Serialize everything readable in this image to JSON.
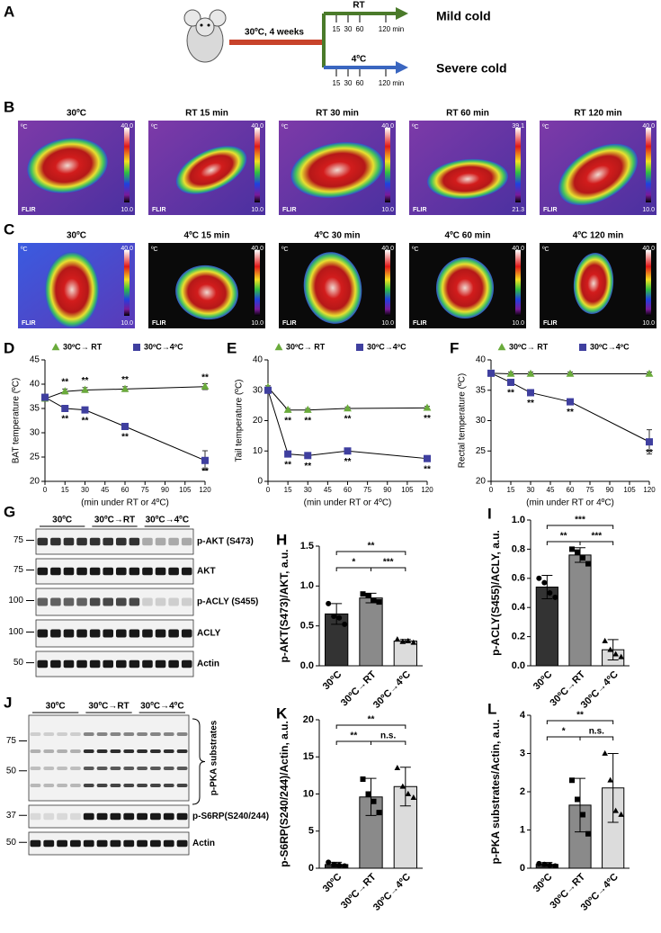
{
  "schematic": {
    "label": "A",
    "housing": "30ºC, 4 weeks",
    "branch_rt": "RT",
    "branch_cold": "4ºC",
    "timepoints": [
      "15",
      "30",
      "60",
      "120 min"
    ],
    "outcome_rt": "Mild cold",
    "outcome_cold": "Severe cold"
  },
  "thermal_b": {
    "label": "B",
    "unit": "ºC",
    "brand": "FLIR",
    "panels": [
      {
        "title": "30ºC",
        "max": "40.0",
        "min": "10.0"
      },
      {
        "title": "RT 15 min",
        "max": "40.0",
        "min": "10.0"
      },
      {
        "title": "RT 30 min",
        "max": "40.0",
        "min": "10.0"
      },
      {
        "title": "RT 60 min",
        "max": "39.1",
        "min": "21.3"
      },
      {
        "title": "RT 120 min",
        "max": "40.0",
        "min": "10.0"
      }
    ]
  },
  "thermal_c": {
    "label": "C",
    "unit": "ºC",
    "brand": "FLIR",
    "panels": [
      {
        "title": "30ºC",
        "max": "40.0",
        "min": "10.0"
      },
      {
        "title": "4ºC 15 min",
        "max": "40.0",
        "min": "10.0"
      },
      {
        "title": "4ºC 30 min",
        "max": "40.0",
        "min": "10.0"
      },
      {
        "title": "4ºC 60 min",
        "max": "40.0",
        "min": "10.0"
      },
      {
        "title": "4ºC 120 min",
        "max": "40.0",
        "min": "10.0"
      }
    ]
  },
  "blots_g": {
    "label": "G",
    "groups": [
      "30ºC",
      "30ºC→RT",
      "30ºC→4ºC"
    ],
    "rows": [
      {
        "name": "p-AKT (S473)",
        "mw": [
          "75"
        ]
      },
      {
        "name": "AKT",
        "mw": [
          "75"
        ]
      },
      {
        "name": "p-ACLY (S455)",
        "mw": [
          "100"
        ]
      },
      {
        "name": "ACLY",
        "mw": [
          "100"
        ]
      },
      {
        "name": "Actin",
        "mw": [
          "50"
        ]
      }
    ]
  },
  "blots_j": {
    "label": "J",
    "groups": [
      "30ºC",
      "30ºC→RT",
      "30ºC→4ºC"
    ],
    "rows": [
      {
        "name": "p-PKA substrates",
        "mw": [
          "75",
          "50"
        ]
      },
      {
        "name": "p-S6RP(S240/244)",
        "mw": [
          "37"
        ]
      },
      {
        "name": "Actin",
        "mw": [
          "50"
        ]
      }
    ]
  },
  "chart_data": [
    {
      "type": "line",
      "label": "D",
      "y_label": "BAT temperature (ºC)",
      "x_label": "(min under RT or 4ºC)",
      "xlim": [
        0,
        120
      ],
      "xticks": [
        0,
        15,
        30,
        45,
        60,
        75,
        90,
        105,
        120
      ],
      "ylim": [
        20,
        45
      ],
      "yticks": [
        20,
        25,
        30,
        35,
        40,
        45
      ],
      "x": [
        0,
        15,
        30,
        60,
        120
      ],
      "series": [
        {
          "name": "30ºC→ RT",
          "color": "#6aab3b",
          "marker": "triangle",
          "values": [
            37,
            38.5,
            38.8,
            39,
            39.5
          ],
          "errors": [
            0.5,
            0.5,
            0.5,
            0.5,
            0.6
          ],
          "significance": [
            null,
            "**",
            "**",
            "**",
            "**"
          ]
        },
        {
          "name": "30ºC→4ºC",
          "color": "#3f3f9f",
          "marker": "square",
          "values": [
            37.3,
            35,
            34.7,
            31.3,
            24.3
          ],
          "errors": [
            0.6,
            0.5,
            0.5,
            0.6,
            2
          ],
          "significance": [
            null,
            "**",
            "**",
            "**",
            "**"
          ]
        }
      ]
    },
    {
      "type": "line",
      "label": "E",
      "y_label": "Tail temperature (ºC)",
      "x_label": "(min under RT or 4ºC)",
      "xlim": [
        0,
        120
      ],
      "xticks": [
        0,
        15,
        30,
        45,
        60,
        75,
        90,
        105,
        120
      ],
      "ylim": [
        0,
        40
      ],
      "yticks": [
        0,
        10,
        20,
        30,
        40
      ],
      "x": [
        0,
        15,
        30,
        60,
        120
      ],
      "series": [
        {
          "name": "30ºC→ RT",
          "color": "#6aab3b",
          "marker": "triangle",
          "values": [
            31,
            23.5,
            23.5,
            24,
            24.2
          ],
          "errors": [
            0.5,
            0.5,
            0.5,
            0.5,
            0.5
          ],
          "significance": [
            null,
            "**",
            "**",
            "**",
            "**"
          ]
        },
        {
          "name": "30ºC→4ºC",
          "color": "#3f3f9f",
          "marker": "square",
          "values": [
            30,
            9,
            8.5,
            10,
            7.5
          ],
          "errors": [
            0.5,
            0.5,
            0.5,
            0.5,
            0.5
          ],
          "significance": [
            null,
            "**",
            "**",
            "**",
            "**"
          ]
        }
      ]
    },
    {
      "type": "line",
      "label": "F",
      "y_label": "Rectal temperature (ºC)",
      "x_label": "(min under RT or 4ºC)",
      "xlim": [
        0,
        120
      ],
      "xticks": [
        0,
        15,
        30,
        45,
        60,
        75,
        90,
        105,
        120
      ],
      "ylim": [
        20,
        40
      ],
      "yticks": [
        20,
        25,
        30,
        35,
        40
      ],
      "x": [
        0,
        15,
        30,
        60,
        120
      ],
      "series": [
        {
          "name": "30ºC→ RT",
          "color": "#6aab3b",
          "marker": "triangle",
          "values": [
            37.8,
            37.7,
            37.7,
            37.7,
            37.7
          ],
          "errors": [
            0.3,
            0.3,
            0.3,
            0.3,
            0.3
          ],
          "significance": [
            null,
            null,
            null,
            null,
            null
          ]
        },
        {
          "name": "30ºC→4ºC",
          "color": "#3f3f9f",
          "marker": "square",
          "values": [
            37.8,
            36.3,
            34.6,
            33.1,
            26.5
          ],
          "errors": [
            0.4,
            0.4,
            0.4,
            0.4,
            2
          ],
          "significance": [
            null,
            "**",
            "**",
            "**",
            "**"
          ]
        }
      ]
    },
    {
      "type": "bar",
      "label": "H",
      "y_label": "p-AKT(S473)/AKT, a.u.",
      "categories": [
        "30ºC",
        "30ºC→RT",
        "30ºC→4ºC"
      ],
      "colors": [
        "#333333",
        "#8a8a8a",
        "#dcdcdc"
      ],
      "markers": [
        "circle",
        "square",
        "triangle"
      ],
      "values": [
        0.65,
        0.85,
        0.31
      ],
      "errors": [
        0.13,
        0.06,
        0.02
      ],
      "points": [
        [
          0.78,
          0.62,
          0.6,
          0.52
        ],
        [
          0.9,
          0.88,
          0.82,
          0.8
        ],
        [
          0.33,
          0.3,
          0.31,
          0.29
        ]
      ],
      "ylim": [
        0,
        1.5
      ],
      "yticks": [
        {
          "value": 0,
          "label": "0.0"
        },
        0.5,
        {
          "value": 1,
          "label": "1.0"
        },
        1.5
      ],
      "brackets": [
        {
          "label": "*",
          "groups": [
            0,
            1
          ]
        },
        {
          "label": "***",
          "groups": [
            1,
            2
          ]
        },
        {
          "label": "**",
          "groups": [
            0,
            2
          ]
        }
      ]
    },
    {
      "type": "bar",
      "label": "I",
      "y_label": "p-ACLY(S455)/ACLY, a.u.",
      "categories": [
        "30ºC",
        "30ºC→RT",
        "30ºC→4ºC"
      ],
      "colors": [
        "#333333",
        "#8a8a8a",
        "#dcdcdc"
      ],
      "markers": [
        "circle",
        "square",
        "triangle"
      ],
      "values": [
        0.54,
        0.76,
        0.11
      ],
      "errors": [
        0.08,
        0.05,
        0.07
      ],
      "points": [
        [
          0.6,
          0.57,
          0.5,
          0.47
        ],
        [
          0.8,
          0.78,
          0.74,
          0.7
        ],
        [
          0.17,
          0.11,
          0.08,
          0.06
        ]
      ],
      "ylim": [
        0,
        1
      ],
      "yticks": [
        {
          "value": 0,
          "label": "0.0"
        },
        0.2,
        0.4,
        0.6,
        0.8,
        {
          "value": 1,
          "label": "1.0"
        }
      ],
      "brackets": [
        {
          "label": "**",
          "groups": [
            0,
            1
          ]
        },
        {
          "label": "***",
          "groups": [
            1,
            2
          ]
        },
        {
          "label": "***",
          "groups": [
            0,
            2
          ]
        }
      ]
    },
    {
      "type": "bar",
      "label": "K",
      "y_label": "p-S6RP(S240/244)/Actin, a.u.",
      "categories": [
        "30ºC",
        "30ºC→RT",
        "30ºC→4ºC"
      ],
      "colors": [
        "#333333",
        "#8a8a8a",
        "#dcdcdc"
      ],
      "markers": [
        "circle",
        "square",
        "triangle"
      ],
      "values": [
        0.5,
        9.6,
        11
      ],
      "errors": [
        0.3,
        2.5,
        2.6
      ],
      "points": [
        [
          0.8,
          0.5,
          0.4,
          0.3
        ],
        [
          12,
          10,
          9,
          7.5
        ],
        [
          13.5,
          11,
          10,
          9.5
        ]
      ],
      "ylim": [
        0,
        20
      ],
      "yticks": [
        0,
        5,
        10,
        15,
        20
      ],
      "brackets": [
        {
          "label": "**",
          "groups": [
            0,
            1
          ]
        },
        {
          "label": "n.s.",
          "groups": [
            1,
            2
          ]
        },
        {
          "label": "**",
          "groups": [
            0,
            2
          ]
        }
      ]
    },
    {
      "type": "bar",
      "label": "L",
      "y_label": "p-PKA substrates/Actin, a.u.",
      "categories": [
        "30ºC",
        "30ºC→RT",
        "30ºC→4ºC"
      ],
      "colors": [
        "#333333",
        "#8a8a8a",
        "#dcdcdc"
      ],
      "markers": [
        "circle",
        "square",
        "triangle"
      ],
      "values": [
        0.1,
        1.65,
        2.1
      ],
      "errors": [
        0.05,
        0.7,
        0.9
      ],
      "points": [
        [
          0.12,
          0.1,
          0.08,
          0.06
        ],
        [
          2.3,
          1.8,
          1.4,
          0.9
        ],
        [
          3.0,
          2.3,
          1.5,
          1.4
        ]
      ],
      "ylim": [
        0,
        4
      ],
      "yticks": [
        0,
        1,
        2,
        3,
        4
      ],
      "brackets": [
        {
          "label": "*",
          "groups": [
            0,
            1
          ]
        },
        {
          "label": "n.s.",
          "groups": [
            1,
            2
          ]
        },
        {
          "label": "**",
          "groups": [
            0,
            2
          ]
        }
      ]
    }
  ]
}
